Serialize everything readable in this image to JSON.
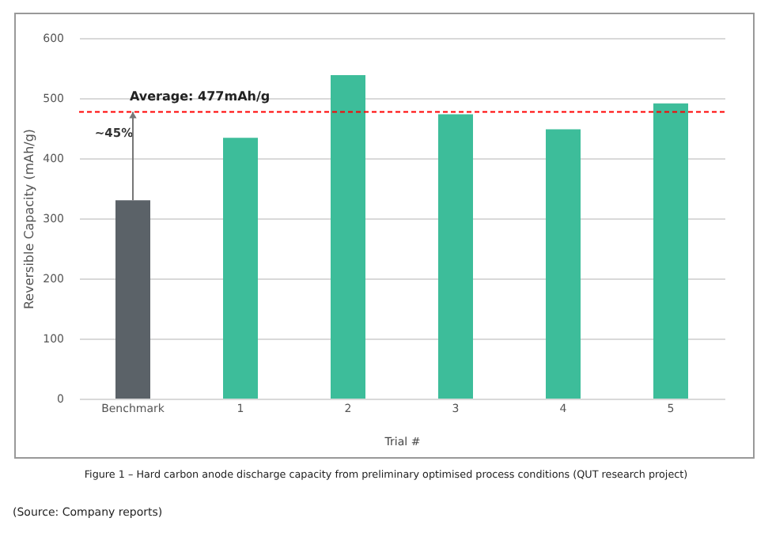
{
  "chart_data": {
    "type": "bar",
    "xlabel": "Trial #",
    "ylabel": "Reversible Capacity (mAh/g)",
    "categories": [
      "Benchmark",
      "1",
      "2",
      "3",
      "4",
      "5"
    ],
    "values": [
      330,
      434,
      538,
      473,
      448,
      491
    ],
    "colors": [
      "#5b6268",
      "#3dbd9a",
      "#3dbd9a",
      "#3dbd9a",
      "#3dbd9a",
      "#3dbd9a"
    ],
    "ylim": [
      0,
      600
    ],
    "yticks": [
      0,
      100,
      200,
      300,
      400,
      500,
      600
    ],
    "grid": "y",
    "ref_lines": [
      {
        "axis": "y",
        "value": 477,
        "label": "Average: 477mAh/g",
        "color": "#ff0000",
        "line_style": "dashed"
      }
    ],
    "annotations": [
      {
        "text": "~45%",
        "x": "Benchmark",
        "y": 477
      },
      "Figure 1 – Hard carbon anode discharge capacity from preliminary optimised process conditions (QUT research project)",
      "(Source: Company reports)"
    ]
  }
}
